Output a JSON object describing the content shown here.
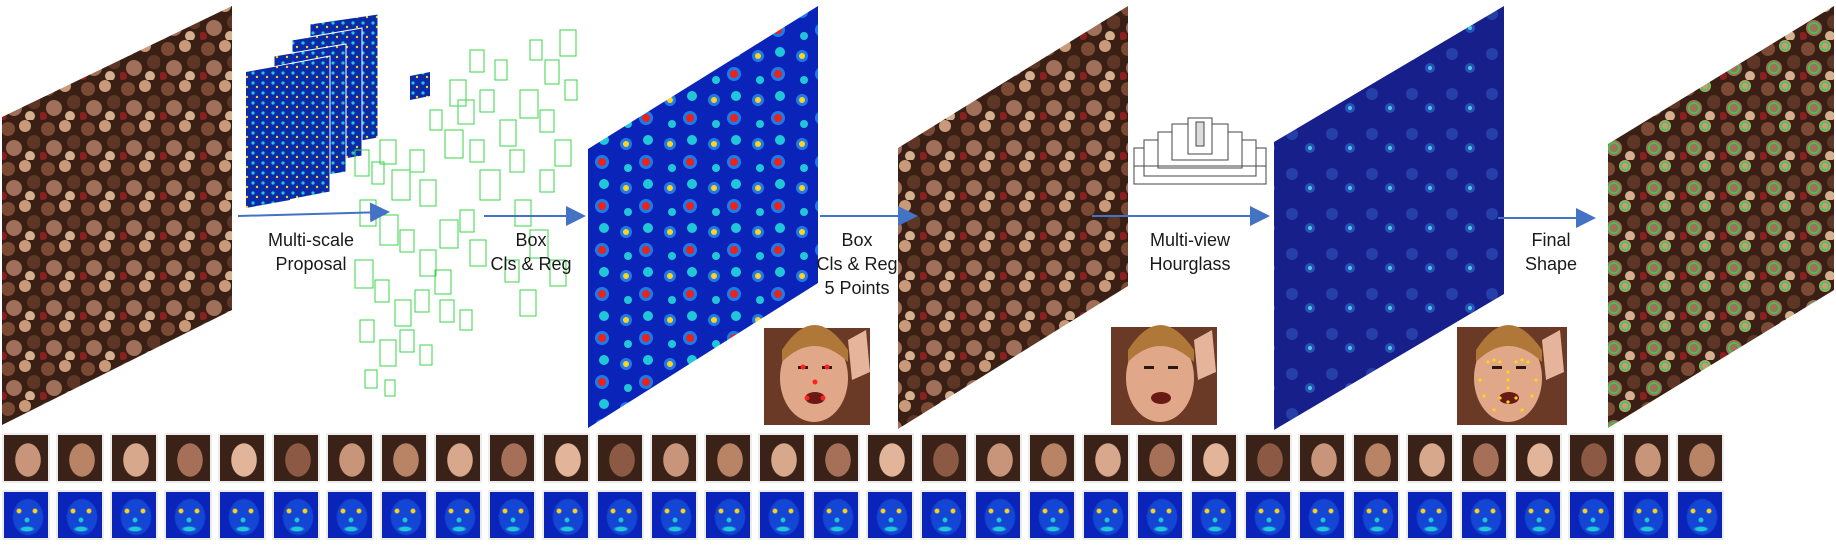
{
  "diagram": {
    "steps": [
      {
        "id": "proposal",
        "label_line1": "Multi-scale",
        "label_line2": "Proposal"
      },
      {
        "id": "box1",
        "label_line1": "Box",
        "label_line2": "Cls & Reg"
      },
      {
        "id": "box2",
        "label_line1": "Box",
        "label_line2": "Cls & Reg",
        "label_line3": "5 Points"
      },
      {
        "id": "hourglass",
        "label_line1": "Multi-view",
        "label_line2": "Hourglass"
      },
      {
        "id": "final",
        "label_line1": "Final",
        "label_line2": "Shape"
      }
    ],
    "colors": {
      "arrow": "#4472c4",
      "proposal_box": "#39d44a",
      "heatmap_low": "#0a23b8",
      "heatmap_high": "#e8231b",
      "crowd_dark": "#3a2014",
      "crowd_mid": "#7a4a35",
      "crowd_light": "#c99a7a",
      "dim_overlay": "#161f8a",
      "landmark_red": "#ff2020",
      "landmark_yellow": "#ffd21e"
    },
    "face_strip_count": 32
  }
}
